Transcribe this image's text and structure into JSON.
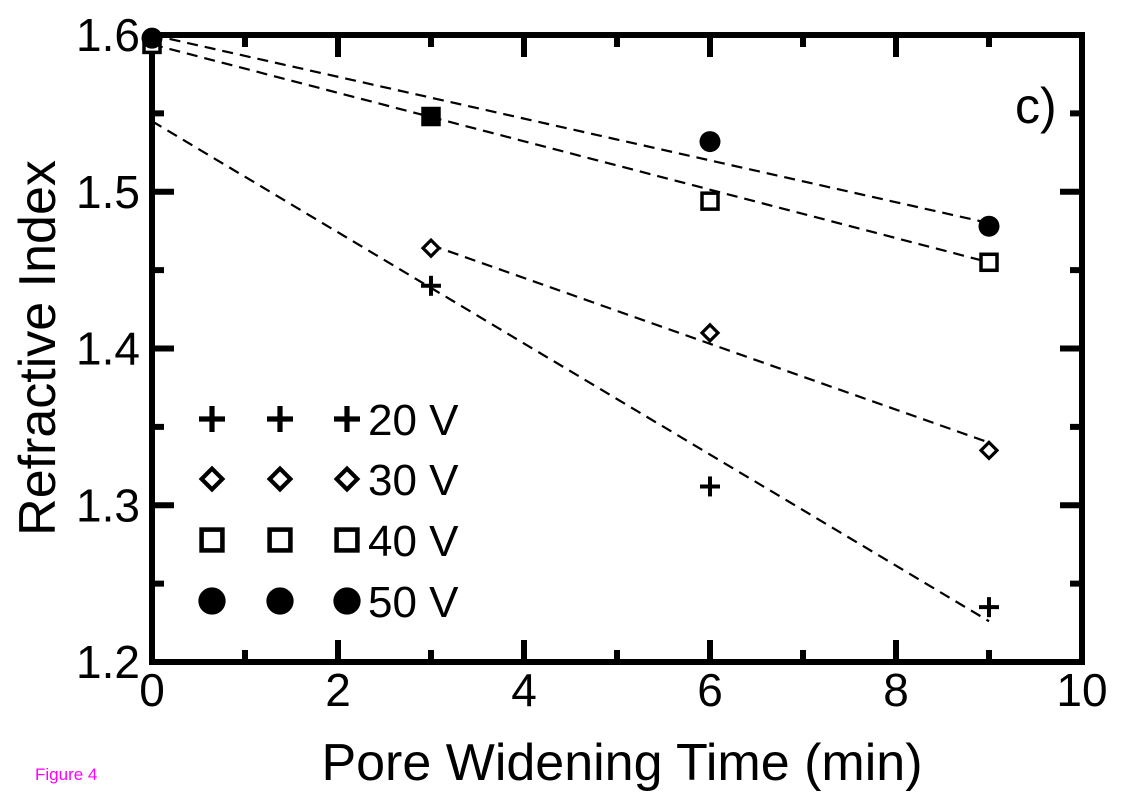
{
  "caption": "Figure 4",
  "chart_data": {
    "type": "scatter",
    "panel_label": "c)",
    "xlabel": "Pore Widening Time (min)",
    "ylabel": "Refractive Index",
    "xlim": [
      0,
      10
    ],
    "ylim": [
      1.2,
      1.6
    ],
    "x_ticks": [
      0,
      2,
      4,
      6,
      8,
      10
    ],
    "x_tick_labels": [
      "0",
      "2",
      "4",
      "6",
      "8",
      "10"
    ],
    "y_ticks": [
      1.2,
      1.3,
      1.4,
      1.5,
      1.6
    ],
    "y_tick_labels": [
      "1.2",
      "1.3",
      "1.4",
      "1.5",
      "1.6"
    ],
    "grid": false,
    "legend_position": "bottom-left",
    "series": [
      {
        "name": "20 V",
        "marker": "plus",
        "x": [
          3,
          6,
          9
        ],
        "y": [
          1.44,
          1.312,
          1.235
        ],
        "fit": [
          [
            0,
            1.545
          ],
          [
            9,
            1.226
          ]
        ]
      },
      {
        "name": "30 V",
        "marker": "diamond",
        "x": [
          3,
          6,
          9
        ],
        "y": [
          1.464,
          1.41,
          1.335
        ],
        "fit": [
          [
            3,
            1.466
          ],
          [
            9,
            1.34
          ]
        ]
      },
      {
        "name": "40 V",
        "marker": "square",
        "x": [
          0,
          3,
          6,
          9
        ],
        "y": [
          1.594,
          1.548,
          1.494,
          1.455
        ],
        "fit": [
          [
            0,
            1.594
          ],
          [
            9,
            1.455
          ]
        ]
      },
      {
        "name": "50 V",
        "marker": "circle",
        "x": [
          0,
          6,
          9
        ],
        "y": [
          1.598,
          1.532,
          1.478
        ],
        "fit": [
          [
            0,
            1.6
          ],
          [
            9,
            1.48
          ]
        ]
      }
    ]
  }
}
